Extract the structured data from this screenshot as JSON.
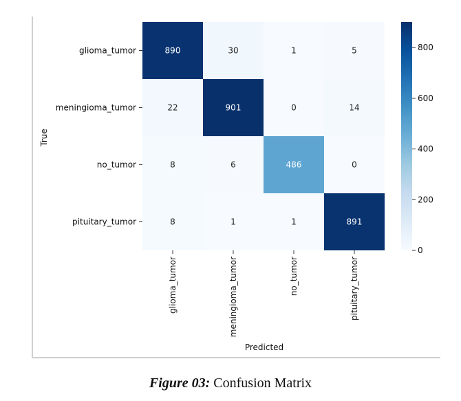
{
  "chart_data": {
    "type": "heatmap",
    "xlabel": "Predicted",
    "ylabel": "True",
    "x_categories": [
      "glioma_tumor",
      "meningioma_tumor",
      "no_tumor",
      "pituitary_tumor"
    ],
    "y_categories": [
      "glioma_tumor",
      "meningioma_tumor",
      "no_tumor",
      "pituitary_tumor"
    ],
    "values": [
      [
        890,
        30,
        1,
        5
      ],
      [
        22,
        901,
        0,
        14
      ],
      [
        8,
        6,
        486,
        0
      ],
      [
        8,
        1,
        1,
        891
      ]
    ],
    "colorbar": {
      "ticks": [
        0,
        200,
        400,
        600,
        800
      ],
      "range": [
        0,
        901
      ],
      "colormap": "Blues"
    },
    "colors": {
      "low": "#f7fbff",
      "high": "#08306b"
    }
  },
  "caption": {
    "prefix": "Figure 03:",
    "text": " Confusion Matrix"
  }
}
